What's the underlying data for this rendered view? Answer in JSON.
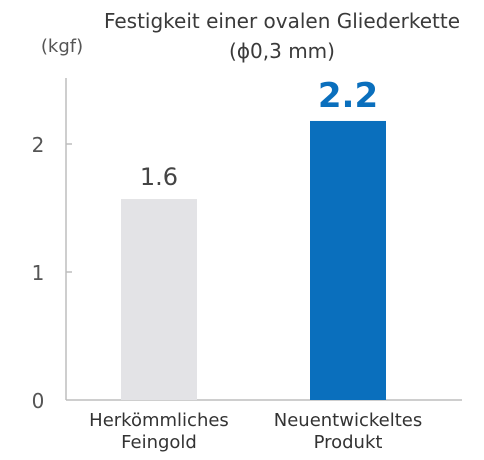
{
  "chart_data": {
    "type": "bar",
    "title": "Festigkeit einer ovalen Gliederkette",
    "subtitle": "(ϕ0,3 mm)",
    "ylabel": "(kgf)",
    "xlabel": "",
    "ylim": [
      0,
      2.5
    ],
    "yticks": [
      "0",
      "1",
      "2"
    ],
    "categories": [
      [
        "Herkömmliches",
        "Feingold"
      ],
      [
        "Neuentwickeltes",
        "Produkt"
      ]
    ],
    "values": [
      1.57,
      2.18
    ],
    "value_labels": [
      "1.6",
      "2.2"
    ],
    "bar_colors": [
      "#e3e3e6",
      "#0a6fbd"
    ],
    "label_colors": [
      "#444444",
      "#0a6fbd"
    ],
    "grid": false,
    "legend": "none"
  }
}
